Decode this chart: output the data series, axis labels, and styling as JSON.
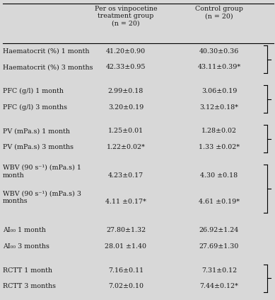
{
  "col_headers": [
    "Per os vinpocetine\ntreatment group\n(n = 20)",
    "Control group\n(n = 20)"
  ],
  "rows": [
    {
      "label": "Haematocrit (%) 1 month",
      "c1": "41.20±0.90",
      "c2": "40.30±0.36",
      "bs": true,
      "be": false,
      "sp": false
    },
    {
      "label": "Haematocrit (%) 3 months",
      "c1": "42.33±0.95",
      "c2": "43.11±0.39*",
      "bs": false,
      "be": true,
      "sp": false
    },
    {
      "label": "",
      "c1": "",
      "c2": "",
      "bs": false,
      "be": false,
      "sp": true
    },
    {
      "label": "PFC (g/l) 1 month",
      "c1": "2.99±0.18",
      "c2": "3.06±0.19",
      "bs": true,
      "be": false,
      "sp": false
    },
    {
      "label": "PFC (g/l) 3 months",
      "c1": "3.20±0.19",
      "c2": "3.12±0.18*",
      "bs": false,
      "be": true,
      "sp": false
    },
    {
      "label": "",
      "c1": "",
      "c2": "",
      "bs": false,
      "be": false,
      "sp": true
    },
    {
      "label": "PV (mPa.s) 1 month",
      "c1": "1.25±0.01",
      "c2": "1.28±0.02",
      "bs": true,
      "be": false,
      "sp": false
    },
    {
      "label": "PV (mPa.s) 3 months",
      "c1": "1.22±0.02*",
      "c2": "1.33 ±0.02*",
      "bs": false,
      "be": true,
      "sp": false
    },
    {
      "label": "",
      "c1": "",
      "c2": "",
      "bs": false,
      "be": false,
      "sp": true
    },
    {
      "label": "WBV (90 s⁻¹) (mPa.s) 1\nmonth",
      "c1": "4.23±0.17",
      "c2": "4.30 ±0.18",
      "bs": true,
      "be": false,
      "sp": false
    },
    {
      "label": "WBV (90 s⁻¹) (mPa.s) 3\nmonths",
      "c1": "4.11 ±0.17*",
      "c2": "4.61 ±0.19*",
      "bs": false,
      "be": true,
      "sp": false
    },
    {
      "label": "",
      "c1": "",
      "c2": "",
      "bs": false,
      "be": false,
      "sp": true
    },
    {
      "label": "AI₀₀ 1 month",
      "c1": "27.80±1.32",
      "c2": "26.92±1.24",
      "bs": false,
      "be": false,
      "sp": false
    },
    {
      "label": "AI₀₀ 3 months",
      "c1": "28.01 ±1.40",
      "c2": "27.69±1.30",
      "bs": false,
      "be": false,
      "sp": false
    },
    {
      "label": "",
      "c1": "",
      "c2": "",
      "bs": false,
      "be": false,
      "sp": true
    },
    {
      "label": "RCTT 1 month",
      "c1": "7.16±0.11",
      "c2": "7.31±0.12",
      "bs": true,
      "be": false,
      "sp": false
    },
    {
      "label": "RCTT 3 months",
      "c1": "7.02±0.10",
      "c2": "7.44±0.12*",
      "bs": false,
      "be": true,
      "sp": false
    }
  ],
  "bg_color": "#d8d8d8",
  "text_color": "#1a1a1a",
  "font_size": 6.8,
  "header_font_size": 6.8,
  "fig_w": 3.89,
  "fig_h": 4.23,
  "dpi": 100
}
